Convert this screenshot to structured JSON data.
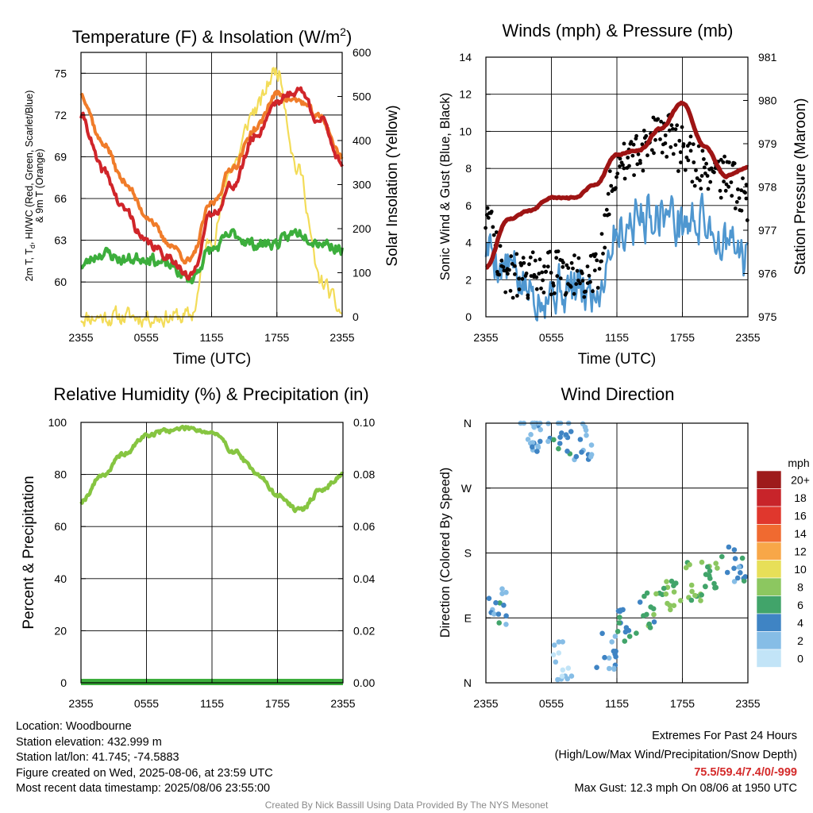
{
  "colors": {
    "t2m": "#d0252a",
    "td": "#3cae3c",
    "t9m": "#f07c2a",
    "solar": "#f3dc58",
    "wind": "#4f97d0",
    "gust": "#000000",
    "pressure": "#9e1414",
    "rh": "#86c541",
    "precip": "#3cae3c",
    "grid": "#000000",
    "extremes": "#d42a2a"
  },
  "panels": {
    "temp": {
      "title": "Temperature (F) & Insolation (W/m",
      "title_sup": "2",
      "title_end": ")",
      "ylabel_left_line1": "2m T, T",
      "ylabel_left_sub": "d",
      "ylabel_left_line1_end": ", HI/WC (Red, Green, Scarlet/Blue)",
      "ylabel_left_line2": "& 9m T (Orange)",
      "ylabel_right": "Solar Insolation (Yellow)",
      "xlabel": "Time (UTC)",
      "xticks": [
        "2355",
        "0555",
        "1155",
        "1755",
        "2355"
      ],
      "yticks_left": [
        "60",
        "63",
        "66",
        "69",
        "72",
        "75"
      ],
      "yticks_right": [
        "0",
        "100",
        "200",
        "300",
        "400",
        "500",
        "600"
      ]
    },
    "wind": {
      "title": "Winds (mph) & Pressure (mb)",
      "ylabel_left": "Sonic Wind & Gust (Blue, Black)",
      "ylabel_right": "Station Pressure (Maroon)",
      "xlabel": "Time (UTC)",
      "xticks": [
        "2355",
        "0555",
        "1155",
        "1755",
        "2355"
      ],
      "yticks_left": [
        "0",
        "2",
        "4",
        "6",
        "8",
        "10",
        "12",
        "14"
      ],
      "yticks_right": [
        "975",
        "976",
        "977",
        "978",
        "979",
        "980",
        "981"
      ]
    },
    "rh": {
      "title": "Relative Humidity (%) & Precipitation (in)",
      "ylabel_left": "Percent & Precipitation",
      "xticks": [
        "2355",
        "0555",
        "1155",
        "1755",
        "2355"
      ],
      "yticks_left": [
        "0",
        "20",
        "40",
        "60",
        "80",
        "100"
      ],
      "yticks_right": [
        "0.00",
        "0.02",
        "0.04",
        "0.06",
        "0.08",
        "0.10"
      ]
    },
    "dir": {
      "title": "Wind Direction",
      "ylabel_left": "Direction (Colored By Speed)",
      "xticks": [
        "2355",
        "0555",
        "1155",
        "1755",
        "2355"
      ],
      "yticks_left": [
        "N",
        "E",
        "S",
        "W",
        "N"
      ],
      "legend_title": "mph",
      "legend_labels": [
        "20+",
        "18",
        "16",
        "14",
        "12",
        "10",
        "8",
        "6",
        "4",
        "2",
        "0"
      ],
      "legend_colors": [
        "#9e1b1b",
        "#c8242a",
        "#e0372d",
        "#f06a30",
        "#f8a748",
        "#e7df58",
        "#8cc760",
        "#41a46a",
        "#3f84c4",
        "#86bde6",
        "#c2e4f7"
      ]
    }
  },
  "chart_data": [
    {
      "type": "line",
      "title": "Temperature (F) & Insolation (W/m2)",
      "xlabel": "Time (UTC)",
      "ylabel": "2m T, Td, HI/WC (Red, Green, Scarlet/Blue) & 9m T (Orange)",
      "ylabel_right": "Solar Insolation (Yellow)",
      "x": [
        "2355",
        "0155",
        "0355",
        "0555",
        "0755",
        "0955",
        "1155",
        "1355",
        "1555",
        "1755",
        "1955",
        "2155",
        "2355"
      ],
      "ylim": [
        57.5,
        76.5
      ],
      "ylim_right": [
        0,
        600
      ],
      "series": [
        {
          "values": [
            71.9,
            68.0,
            65.2,
            62.8,
            61.9,
            60.3,
            64.8,
            67.0,
            70.5,
            73.0,
            73.8,
            71.6,
            68.6
          ]
        },
        {
          "values": [
            61.2,
            62.1,
            61.6,
            61.8,
            61.2,
            60.2,
            62.3,
            63.4,
            62.7,
            62.8,
            63.6,
            62.9,
            62.4
          ]
        },
        {
          "values": [
            73.5,
            70.0,
            67.2,
            64.8,
            62.8,
            61.5,
            65.6,
            68.3,
            71.0,
            73.5,
            73.0,
            71.8,
            69.0
          ]
        },
        {
          "values": [
            0,
            0,
            0,
            0,
            0,
            0,
            180,
            350,
            470,
            560,
            330,
            80,
            10
          ],
          "axis": "right"
        }
      ]
    },
    {
      "type": "line",
      "title": "Winds (mph) & Pressure (mb)",
      "xlabel": "Time (UTC)",
      "ylabel": "Sonic Wind & Gust (Blue, Black)",
      "ylabel_right": "Station Pressure (Maroon)",
      "x": [
        "2355",
        "0155",
        "0355",
        "0555",
        "0755",
        "0955",
        "1155",
        "1355",
        "1555",
        "1755",
        "1955",
        "2155",
        "2355"
      ],
      "ylim": [
        0,
        14
      ],
      "ylim_right": [
        975,
        981
      ],
      "series": [
        {
          "values": [
            3.8,
            2.6,
            1.4,
            1.6,
            1.4,
            1.3,
            4.8,
            5.4,
            5.8,
            5.0,
            5.2,
            3.8,
            3.0
          ]
        },
        {
          "values": [
            5.4,
            2.1,
            2.2,
            2.3,
            2.4,
            2.1,
            7.9,
            8.8,
            10.0,
            9.0,
            8.0,
            7.4,
            6.2
          ],
          "type": "scatter"
        },
        {
          "values": [
            976.15,
            977.25,
            977.45,
            977.75,
            977.75,
            978.05,
            978.75,
            978.85,
            979.35,
            979.95,
            978.95,
            978.25,
            978.45
          ],
          "axis": "right"
        }
      ]
    },
    {
      "type": "line",
      "title": "Relative Humidity (%) & Precipitation (in)",
      "ylabel": "Percent & Precipitation",
      "x": [
        "2355",
        "0155",
        "0355",
        "0555",
        "0755",
        "0955",
        "1155",
        "1355",
        "1555",
        "1755",
        "1955",
        "2155",
        "2355"
      ],
      "ylim": [
        0,
        100
      ],
      "ylim_right": [
        0,
        0.1
      ],
      "series": [
        {
          "values": [
            70,
            80,
            88,
            95,
            97,
            98,
            96,
            89,
            81,
            72,
            66,
            74,
            80
          ]
        },
        {
          "values": [
            0,
            0,
            0,
            0,
            0,
            0,
            0,
            0,
            0,
            0,
            0,
            0,
            0
          ],
          "axis": "right"
        }
      ]
    },
    {
      "type": "scatter",
      "title": "Wind Direction",
      "ylabel": "Direction (Colored By Speed)",
      "x": [
        "2355",
        "0155",
        "0355",
        "0555",
        "0755",
        "0955",
        "1155",
        "1355",
        "1555",
        "1755",
        "1955",
        "2155",
        "2355"
      ],
      "yticks": [
        "N",
        "E",
        "S",
        "W",
        "N"
      ],
      "ylim": [
        0,
        360
      ],
      "points": [
        {
          "x": "0055",
          "y": 105,
          "speed": 4
        },
        {
          "x": "0355",
          "y": 350,
          "speed": 2
        },
        {
          "x": "0455",
          "y": 345,
          "speed": 3
        },
        {
          "x": "0655",
          "y": 340,
          "speed": 4
        },
        {
          "x": "0855",
          "y": 335,
          "speed": 2
        },
        {
          "x": "0655",
          "y": 30,
          "speed": 1
        },
        {
          "x": "1055",
          "y": 45,
          "speed": 3
        },
        {
          "x": "1255",
          "y": 80,
          "speed": 5
        },
        {
          "x": "1455",
          "y": 100,
          "speed": 6
        },
        {
          "x": "1655",
          "y": 120,
          "speed": 7
        },
        {
          "x": "1855",
          "y": 140,
          "speed": 7
        },
        {
          "x": "2055",
          "y": 155,
          "speed": 6
        },
        {
          "x": "2255",
          "y": 165,
          "speed": 4
        }
      ]
    }
  ],
  "footer": {
    "location": "Location: Woodbourne",
    "elevation": "Station elevation: 432.999 m",
    "latlon": "Station lat/lon: 41.745; -74.5883",
    "created": "Figure created on Wed, 2025-08-06, at 23:59 UTC",
    "recent": "Most recent data timestamp: 2025/08/06 23:55:00",
    "extremes_title": "Extremes For Past 24 Hours",
    "extremes_legend": "(High/Low/Max Wind/Precipitation/Snow Depth)",
    "extremes_values": "75.5/59.4/7.4/0/-999",
    "max_gust": "Max Gust: 12.3 mph On 08/06 at 1950 UTC",
    "credit": "Created By Nick Bassill Using Data Provided By The NYS Mesonet"
  }
}
